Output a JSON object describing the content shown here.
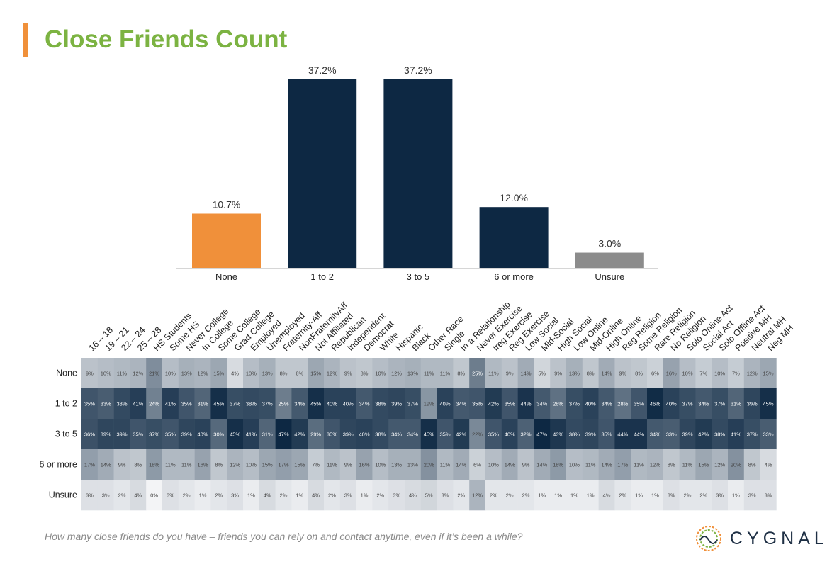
{
  "page": {
    "title": "Close Friends Count"
  },
  "footer": {
    "question": "How many close friends do you have – friends you can rely on and contact anytime, even if it’s been a while?",
    "logo_text": "CYGNAL"
  },
  "colors": {
    "title": "#7cb342",
    "accent_bar": "#f0903a",
    "bar_none": "#f0903a",
    "bar_main": "#0d2843",
    "bar_unsure": "#8c8c8c",
    "heat_low": "#f3f4f6",
    "heat_high": "#0d2843"
  },
  "chart_data": [
    {
      "type": "bar",
      "categories": [
        "None",
        "1 to 2",
        "3 to 5",
        "6 or more",
        "Unsure"
      ],
      "values": [
        10.7,
        37.2,
        37.2,
        12.0,
        3.0
      ],
      "data_labels": [
        "10.7%",
        "37.2%",
        "37.2%",
        "12.0%",
        "3.0%"
      ],
      "title": "",
      "xlabel": "",
      "ylabel": "",
      "ylim": [
        0,
        37.2
      ]
    },
    {
      "type": "heatmap",
      "columns": [
        "16 – 18",
        "19 – 21",
        "22 – 24",
        "25 – 28",
        "HS Students",
        "Some HS",
        "Never College",
        "In College",
        "Some College",
        "Grad College",
        "Employed",
        "Unemployed",
        "Fraternity-Aff",
        "NonFraternityAff",
        "Not Affiliated",
        "Republican",
        "Independent",
        "Democrat",
        "White",
        "Hispanic",
        "Black",
        "Other Race",
        "Single",
        "In a Relationship",
        "Never Exercise",
        "Ireg Exercise",
        "Reg Exercise",
        "Low Social",
        "Mid-Social",
        "High Social",
        "Low Online",
        "Mid-Online",
        "High Online",
        "Reg Religion",
        "Some Religion",
        "Rare Religion",
        "No Religion",
        "Solo Online Act",
        "Social Act",
        "Solo Offline Act",
        "Positive MH",
        "Neutral MH",
        "Neg MH"
      ],
      "rows": [
        "None",
        "1 to 2",
        "3 to 5",
        "6 or more",
        "Unsure"
      ],
      "values": [
        [
          9,
          10,
          11,
          12,
          21,
          10,
          13,
          12,
          15,
          4,
          10,
          13,
          8,
          8,
          15,
          12,
          9,
          8,
          10,
          12,
          13,
          11,
          11,
          8,
          25,
          11,
          9,
          14,
          5,
          9,
          13,
          8,
          14,
          9,
          8,
          6,
          16,
          10,
          7,
          10,
          7,
          12,
          15
        ],
        [
          35,
          33,
          38,
          41,
          24,
          41,
          35,
          31,
          45,
          37,
          38,
          37,
          25,
          34,
          45,
          40,
          40,
          34,
          38,
          39,
          37,
          19,
          40,
          34,
          35,
          42,
          35,
          44,
          34,
          28,
          37,
          40,
          34,
          28,
          35,
          46,
          40,
          37,
          34,
          37,
          31,
          39,
          45
        ],
        [
          36,
          39,
          39,
          35,
          37,
          35,
          39,
          40,
          30,
          45,
          41,
          31,
          47,
          42,
          29,
          35,
          39,
          40,
          38,
          34,
          34,
          45,
          35,
          42,
          22,
          35,
          40,
          32,
          47,
          43,
          38,
          39,
          35,
          44,
          44,
          34,
          33,
          39,
          42,
          38,
          41,
          37,
          33
        ],
        [
          17,
          14,
          9,
          8,
          18,
          11,
          11,
          16,
          8,
          12,
          10,
          15,
          17,
          15,
          7,
          11,
          9,
          16,
          10,
          13,
          13,
          20,
          11,
          14,
          6,
          10,
          14,
          9,
          14,
          18,
          10,
          11,
          14,
          17,
          11,
          12,
          8,
          11,
          15,
          12,
          20,
          8,
          4
        ],
        [
          3,
          3,
          2,
          4,
          0,
          3,
          2,
          1,
          2,
          3,
          1,
          4,
          2,
          1,
          4,
          2,
          3,
          1,
          2,
          3,
          4,
          5,
          3,
          2,
          12,
          2,
          2,
          2,
          1,
          1,
          1,
          1,
          4,
          2,
          1,
          1,
          3,
          2,
          2,
          3,
          1,
          3,
          3
        ]
      ],
      "value_suffix": "%"
    }
  ]
}
